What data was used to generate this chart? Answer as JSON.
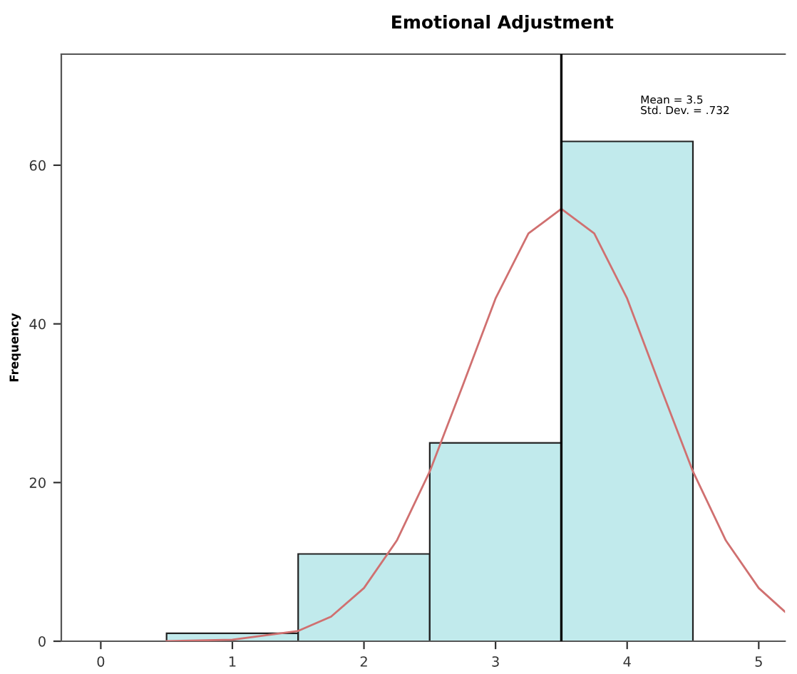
{
  "chart_data": {
    "type": "histogram",
    "title": "Emotional Adjustment",
    "ylabel": "Frequency",
    "bins": [
      0.5,
      1.5,
      2.5,
      3.5,
      4.5
    ],
    "values": [
      1,
      11,
      25,
      63
    ],
    "color": "#c1eaec",
    "series": [
      {
        "type": "line",
        "color": "#d07070",
        "x": [
          0.5,
          1.0,
          1.5,
          1.75,
          2.0,
          2.25,
          2.5,
          2.75,
          3.0,
          3.25,
          3.5,
          3.75,
          4.0,
          4.25,
          4.5,
          4.75,
          5.0,
          5.2
        ],
        "values": [
          0,
          0.2,
          1.3,
          3.1,
          6.7,
          12.7,
          21.4,
          32.2,
          43.2,
          51.4,
          54.5,
          51.4,
          43.2,
          32.2,
          21.4,
          12.7,
          6.7,
          3.7
        ]
      }
    ],
    "ref_lines": [
      {
        "axis": "x",
        "value": 3.5,
        "color": "#000000"
      }
    ],
    "annotations": [
      "Mean = 3.5",
      "Std. Dev. = .732"
    ],
    "xlim": [
      -0.3,
      5.2
    ],
    "xticks": [
      0,
      1,
      2,
      3,
      4,
      5
    ],
    "ylim": [
      0,
      74
    ],
    "yticks": [
      0,
      20,
      40,
      60
    ],
    "grid": false,
    "legend": false
  }
}
